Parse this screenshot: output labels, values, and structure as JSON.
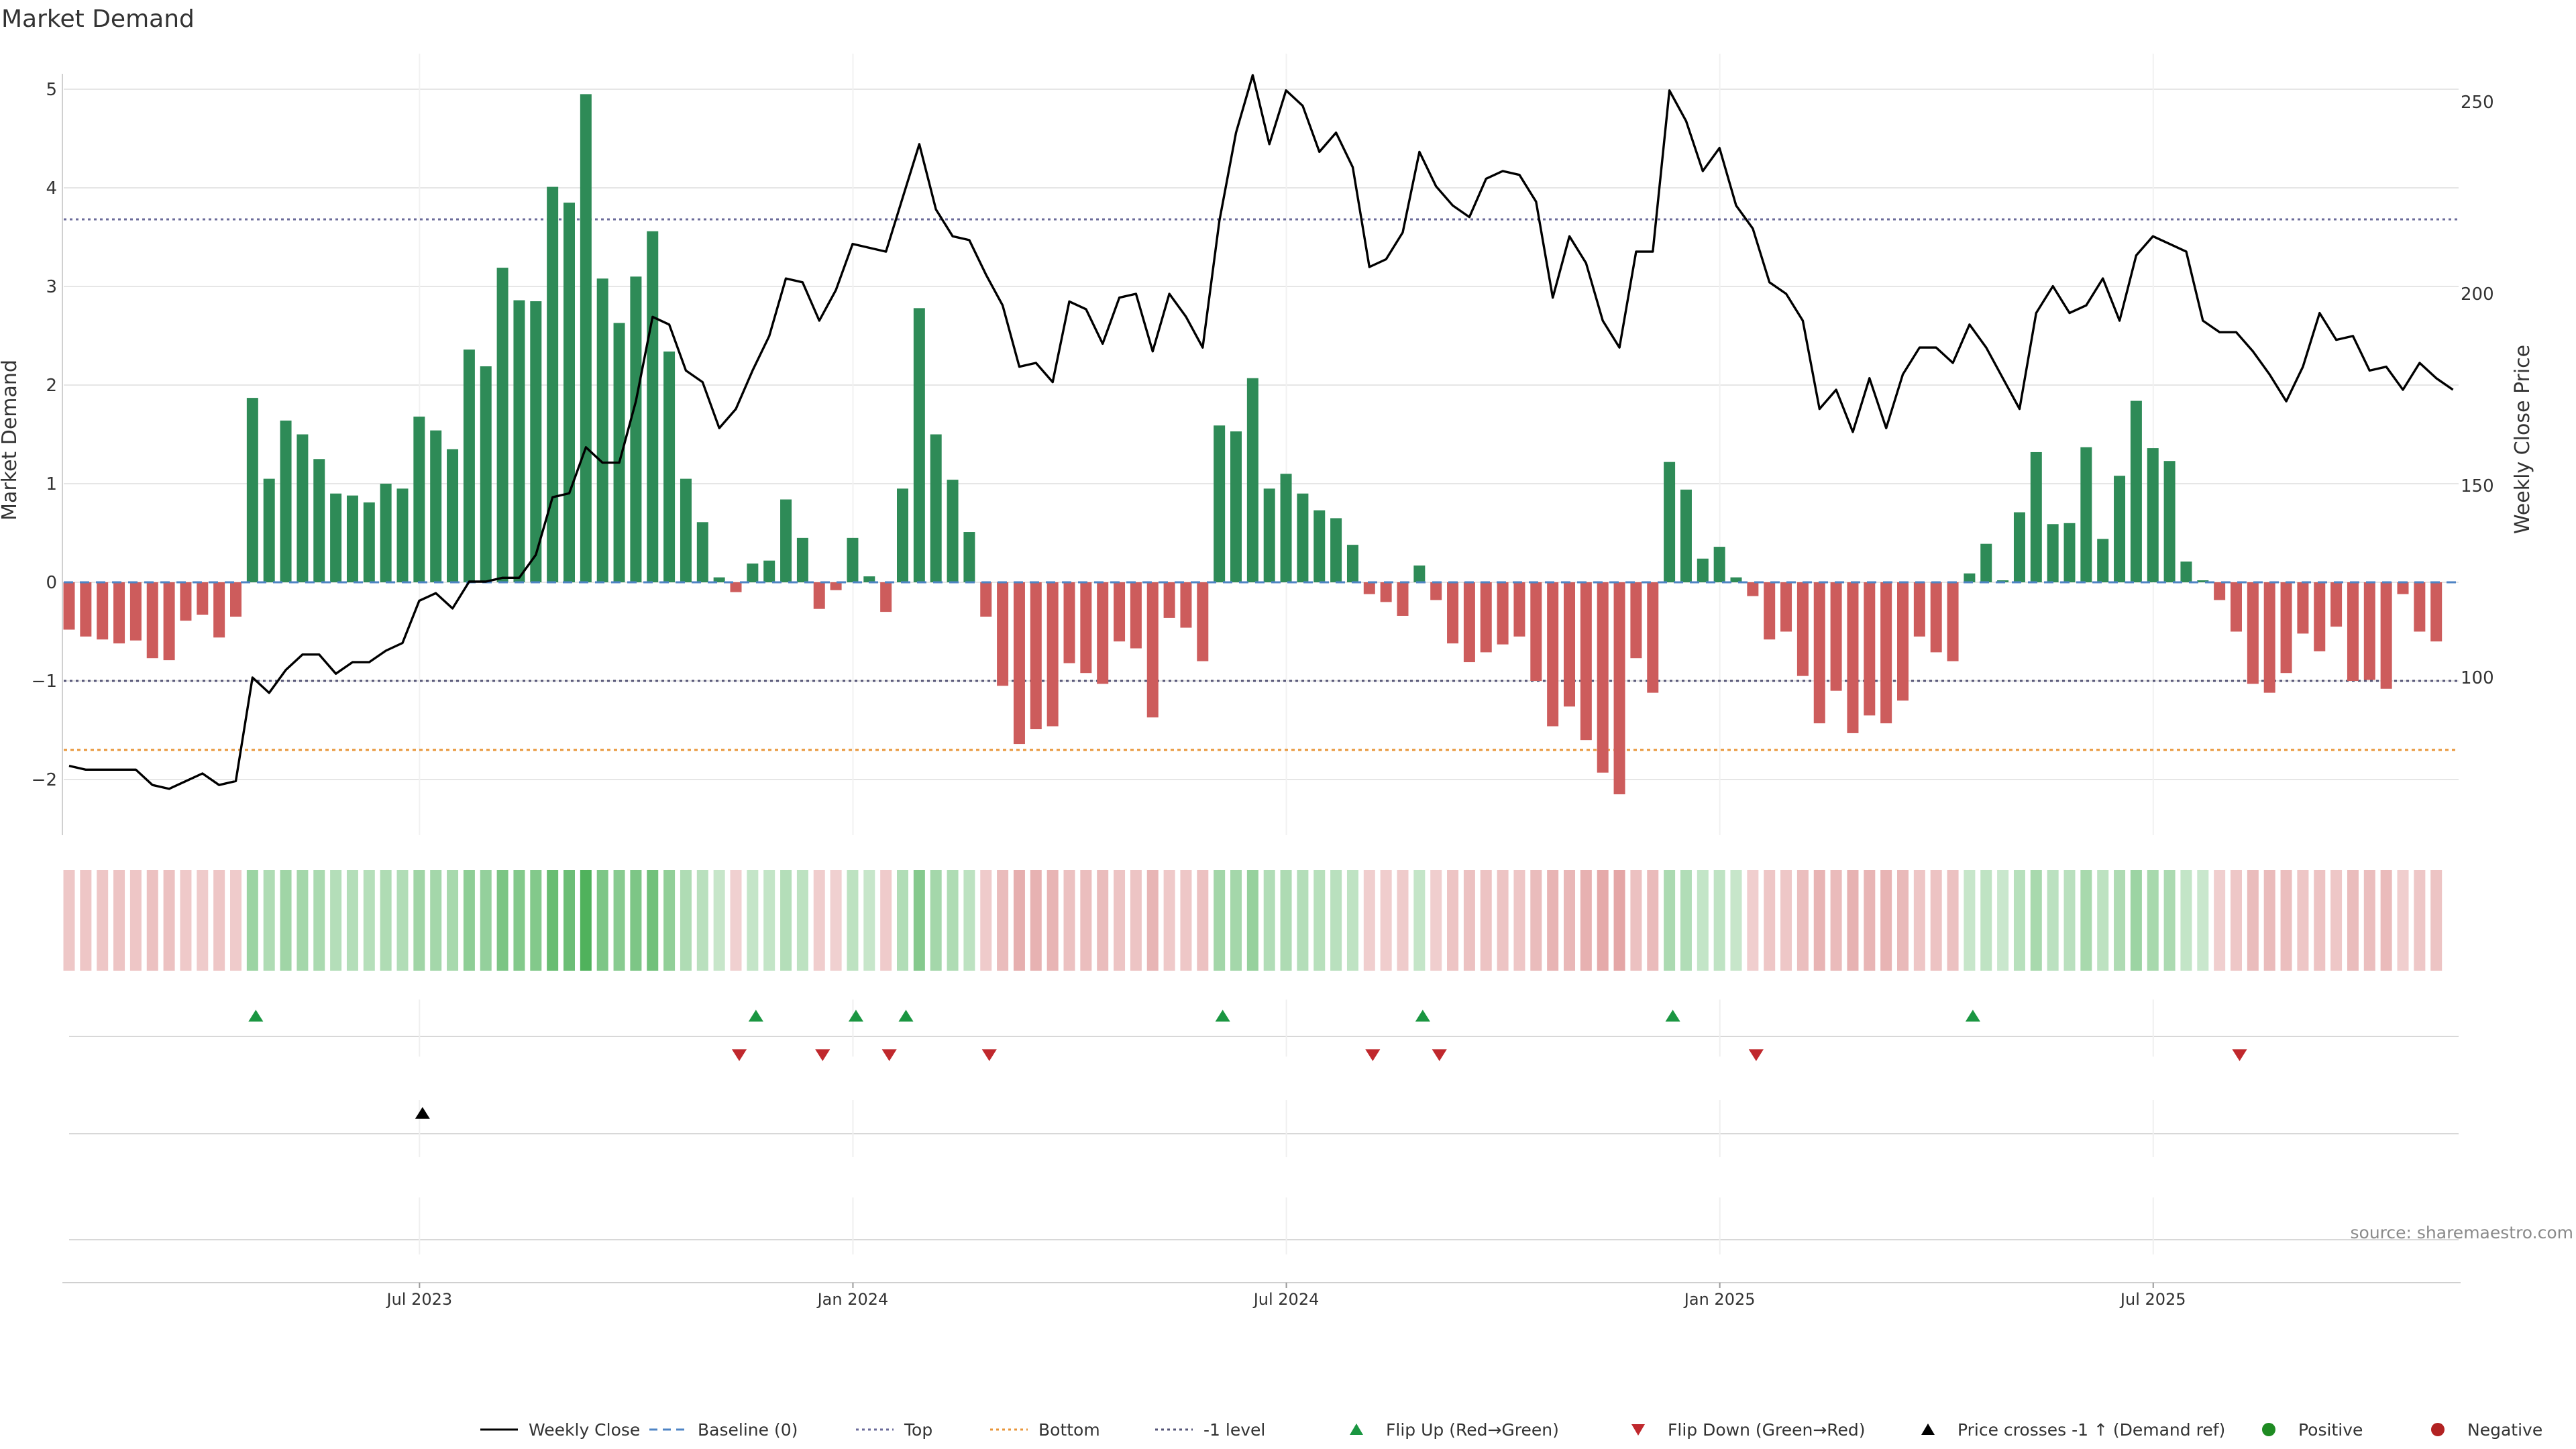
{
  "chart_data": {
    "type": "bar",
    "title": "Market Demand",
    "ylabel": "Market Demand",
    "y2label": "Weekly Close Price",
    "ylim": [
      -2.55,
      5.3
    ],
    "y_ticks": [
      -2,
      -1,
      0,
      1,
      2,
      3,
      4,
      5
    ],
    "y2lim": [
      52,
      256
    ],
    "y2_ticks": [
      100,
      150,
      200,
      250
    ],
    "x_ticks": [
      "Jul 2023",
      "Jan 2024",
      "Jul 2024",
      "Jan 2025",
      "Jul 2025"
    ],
    "x_tick_weeks": [
      21,
      47,
      73,
      99,
      125
    ],
    "num_weeks": 144,
    "grid": true,
    "legend_position": "bottom",
    "demand": [
      -0.48,
      -0.55,
      -0.58,
      -0.62,
      -0.59,
      -0.77,
      -0.79,
      -0.39,
      -0.33,
      -0.56,
      -0.35,
      1.87,
      1.05,
      1.64,
      1.5,
      1.25,
      0.9,
      0.88,
      0.81,
      1.0,
      0.95,
      1.68,
      1.54,
      1.35,
      2.36,
      2.19,
      3.19,
      2.86,
      2.85,
      4.01,
      3.85,
      4.95,
      3.08,
      2.63,
      3.1,
      3.56,
      2.34,
      1.05,
      0.61,
      0.05,
      -0.1,
      0.19,
      0.22,
      0.84,
      0.45,
      -0.27,
      -0.08,
      0.45,
      0.06,
      -0.3,
      0.95,
      2.78,
      1.5,
      1.04,
      0.51,
      -0.35,
      -1.05,
      -1.64,
      -1.49,
      -1.46,
      -0.82,
      -0.92,
      -1.03,
      -0.6,
      -0.67,
      -1.37,
      -0.36,
      -0.46,
      -0.8,
      1.59,
      1.53,
      2.07,
      0.95,
      1.1,
      0.9,
      0.73,
      0.65,
      0.38,
      -0.12,
      -0.2,
      -0.34,
      0.17,
      -0.18,
      -0.62,
      -0.81,
      -0.71,
      -0.63,
      -0.55,
      -1.0,
      -1.46,
      -1.26,
      -1.6,
      -1.93,
      -2.15,
      -0.77,
      -1.12,
      1.22,
      0.94,
      0.24,
      0.36,
      0.05,
      -0.14,
      -0.58,
      -0.5,
      -0.95,
      -1.43,
      -1.1,
      -1.53,
      -1.35,
      -1.43,
      -1.2,
      -0.55,
      -0.71,
      -0.8,
      0.09,
      0.39,
      0.02,
      0.71,
      1.32,
      0.59,
      0.6,
      1.37,
      0.44,
      1.08,
      1.84,
      1.36,
      1.23,
      0.21,
      0.02,
      -0.18,
      -0.5,
      -1.03,
      -1.12,
      -0.92,
      -0.52,
      -0.7,
      -0.45,
      -1.0,
      -0.99,
      -1.08,
      -0.12,
      -0.5,
      -0.6
    ],
    "weekly_close": [
      77,
      76,
      76,
      76,
      76,
      72,
      71,
      73,
      75,
      72,
      73,
      100,
      96,
      102,
      106,
      106,
      101,
      104,
      104,
      107,
      109,
      120,
      122,
      118,
      125,
      125,
      126,
      126,
      132,
      147,
      148,
      160,
      156,
      156,
      172,
      194,
      192,
      180,
      177,
      165,
      170,
      180,
      189,
      204,
      203,
      193,
      201,
      213,
      212,
      211,
      225,
      239,
      222,
      215,
      214,
      205,
      197,
      181,
      182,
      177,
      198,
      196,
      187,
      199,
      200,
      185,
      200,
      194,
      186,
      219,
      242,
      257,
      239,
      253,
      249,
      237,
      242,
      233,
      207,
      209,
      216,
      237,
      228,
      223,
      220,
      230,
      232,
      231,
      224,
      199,
      215,
      208,
      193,
      186,
      211,
      211,
      253,
      245,
      232,
      238,
      223,
      217,
      203,
      200,
      193,
      170,
      175,
      164,
      178,
      165,
      179,
      186,
      186,
      182,
      192,
      186,
      178,
      170,
      195,
      202,
      195,
      197,
      204,
      193,
      210,
      215,
      213,
      211,
      193,
      190,
      190,
      185,
      179,
      172,
      181,
      195,
      188,
      189,
      180,
      181,
      175,
      182,
      178,
      175
    ],
    "flip_up_weeks": [
      11,
      41,
      47,
      50,
      69,
      81,
      96,
      114
    ],
    "flip_down_weeks": [
      40,
      45,
      49,
      55,
      78,
      82,
      101,
      130
    ],
    "price_cross_weeks": [
      21
    ],
    "top_level": 3.68,
    "bottom_level": -1.7,
    "minus1_level": -1.0,
    "baseline_level": 0
  },
  "annotation": {
    "source": "source: sharemaestro.com"
  },
  "legend": [
    {
      "label": "Weekly Close",
      "icon": "line-solid"
    },
    {
      "label": "Baseline (0)",
      "icon": "line-dashed"
    },
    {
      "label": "Top",
      "icon": "line-dotted"
    },
    {
      "label": "Bottom",
      "icon": "line-dotted"
    },
    {
      "label": "-1 level",
      "icon": "line-dotted"
    },
    {
      "label": "Flip Up (Red→Green)",
      "icon": "triangle-up"
    },
    {
      "label": "Flip Down (Green→Red)",
      "icon": "triangle-down"
    },
    {
      "label": "Price crosses -1 ↑ (Demand ref)",
      "icon": "triangle-up"
    },
    {
      "label": "Positive",
      "icon": "dot"
    },
    {
      "label": "Negative",
      "icon": "dot"
    }
  ],
  "colors": {
    "positive_bar": "#2e8b57",
    "negative_bar": "#cd5c5c",
    "price_line": "#000000",
    "baseline": "#4f84c4",
    "top_line": "#6b6b9a",
    "bottom_line": "#e8963a",
    "minus1_line": "#555577",
    "flip_up": "#1a9641",
    "flip_down": "#c0282d",
    "price_cross": "#000000",
    "positive_dot": "#1e8b22",
    "negative_dot": "#b22222",
    "heat_pos": "#3daa4a",
    "heat_neg": "#cd5c5c",
    "grid": "#e6e6e6"
  }
}
